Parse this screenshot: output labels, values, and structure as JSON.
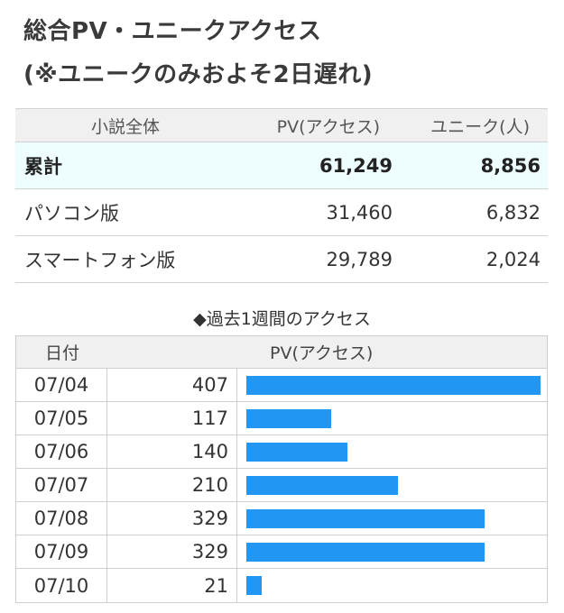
{
  "page": {
    "title_line1": "総合PV・ユニークアクセス",
    "title_line2": "(※ユニークのみおよそ2日遅れ)"
  },
  "summary": {
    "headers": [
      "小説全体",
      "PV(アクセス)",
      "ユニーク(人)"
    ],
    "rows": [
      {
        "label": "累計",
        "pv": "61,249",
        "unique": "8,856"
      },
      {
        "label": "パソコン版",
        "pv": "31,460",
        "unique": "6,832"
      },
      {
        "label": "スマートフォン版",
        "pv": "29,789",
        "unique": "2,024"
      }
    ]
  },
  "weekly": {
    "title": "◆過去1週間のアクセス",
    "headers": [
      "日付",
      "PV(アクセス)"
    ],
    "bar_color": "#2196f3",
    "max_value": 407
  },
  "chart_data": {
    "type": "bar",
    "categories": [
      "07/04",
      "07/05",
      "07/06",
      "07/07",
      "07/08",
      "07/09",
      "07/10"
    ],
    "values": [
      407,
      117,
      140,
      210,
      329,
      329,
      21
    ],
    "title": "◆過去1週間のアクセス",
    "xlabel": "日付",
    "ylabel": "PV(アクセス)"
  }
}
